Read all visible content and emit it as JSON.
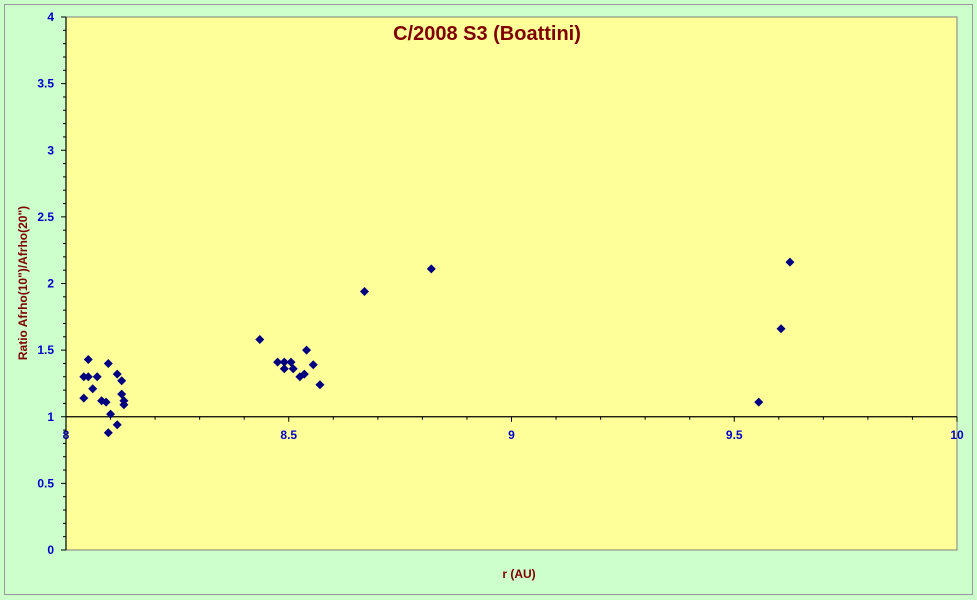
{
  "chart_data": {
    "type": "scatter",
    "title": "C/2008 S3 (Boattini)",
    "xlabel": "r (AU)",
    "ylabel": "Ratio Afrho(10\")/Afrho(20\")",
    "xlim": [
      8,
      10
    ],
    "ylim": [
      0,
      4
    ],
    "x_ticks": [
      8,
      8.5,
      9,
      9.5,
      10
    ],
    "y_ticks": [
      0,
      0.5,
      1,
      1.5,
      2,
      2.5,
      3,
      3.5,
      4
    ],
    "x_tick_labels": [
      "8",
      "8.5",
      "9",
      "9.5",
      "10"
    ],
    "y_tick_labels": [
      "0",
      "0.5",
      "1",
      "1.5",
      "2",
      "2.5",
      "3",
      "3.5",
      "4"
    ],
    "x_axis_crosses_at_y": 1,
    "grid": false,
    "legend": "none",
    "marker": "diamond",
    "marker_color": "#000080",
    "points": [
      {
        "x": 8.04,
        "y": 1.3
      },
      {
        "x": 8.04,
        "y": 1.14
      },
      {
        "x": 8.05,
        "y": 1.3
      },
      {
        "x": 8.05,
        "y": 1.43
      },
      {
        "x": 8.06,
        "y": 1.21
      },
      {
        "x": 8.07,
        "y": 1.3
      },
      {
        "x": 8.08,
        "y": 1.12
      },
      {
        "x": 8.09,
        "y": 1.11
      },
      {
        "x": 8.095,
        "y": 1.4
      },
      {
        "x": 8.095,
        "y": 0.88
      },
      {
        "x": 8.1,
        "y": 1.02
      },
      {
        "x": 8.115,
        "y": 0.94
      },
      {
        "x": 8.115,
        "y": 1.32
      },
      {
        "x": 8.125,
        "y": 1.27
      },
      {
        "x": 8.125,
        "y": 1.17
      },
      {
        "x": 8.13,
        "y": 1.12
      },
      {
        "x": 8.13,
        "y": 1.09
      },
      {
        "x": 8.435,
        "y": 1.58
      },
      {
        "x": 8.475,
        "y": 1.41
      },
      {
        "x": 8.49,
        "y": 1.41
      },
      {
        "x": 8.49,
        "y": 1.36
      },
      {
        "x": 8.505,
        "y": 1.41
      },
      {
        "x": 8.51,
        "y": 1.36
      },
      {
        "x": 8.525,
        "y": 1.3
      },
      {
        "x": 8.535,
        "y": 1.32
      },
      {
        "x": 8.54,
        "y": 1.5
      },
      {
        "x": 8.555,
        "y": 1.39
      },
      {
        "x": 8.57,
        "y": 1.24
      },
      {
        "x": 8.67,
        "y": 1.94
      },
      {
        "x": 8.82,
        "y": 2.11
      },
      {
        "x": 9.555,
        "y": 1.11
      },
      {
        "x": 9.605,
        "y": 1.66
      },
      {
        "x": 9.625,
        "y": 2.16
      }
    ]
  }
}
